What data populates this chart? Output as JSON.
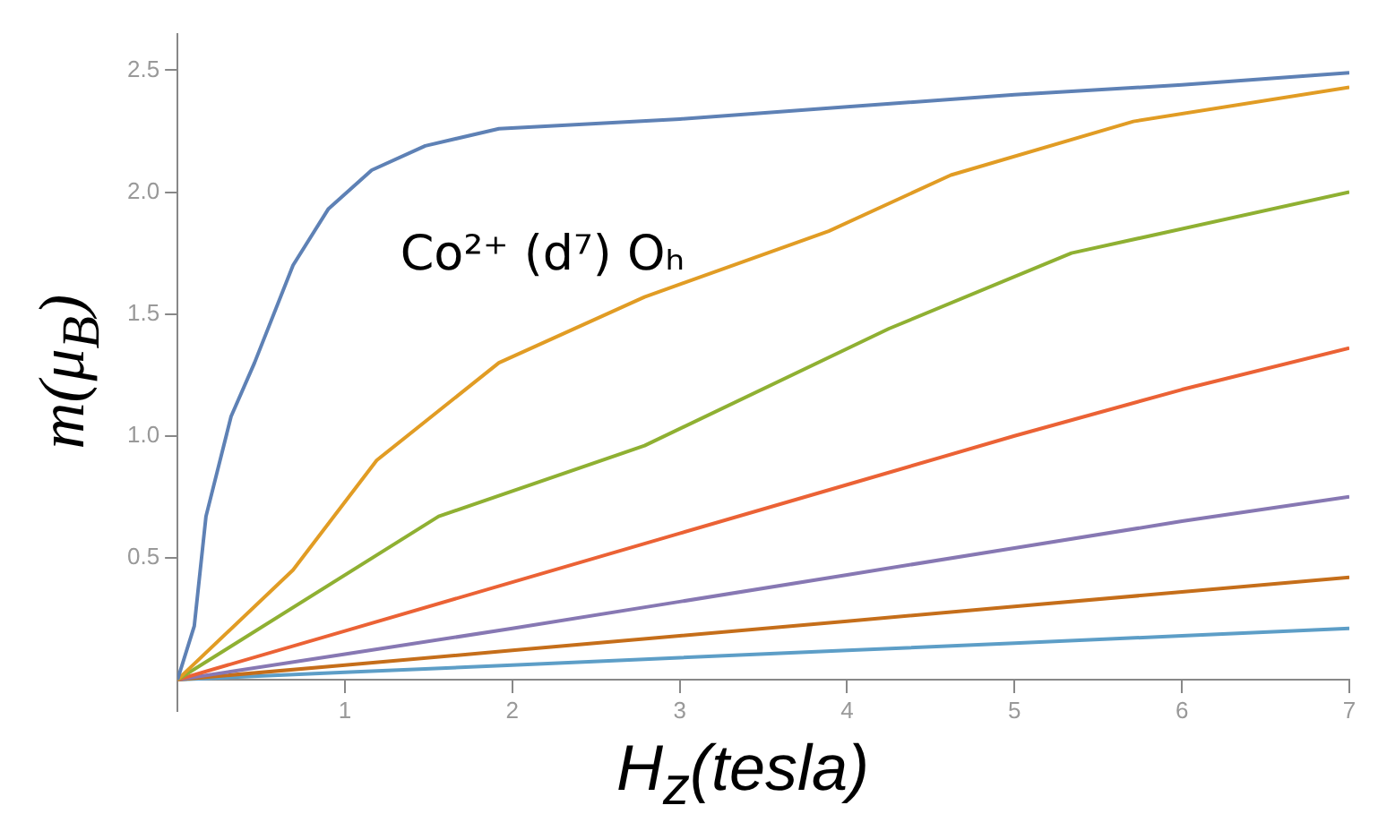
{
  "chart_data": {
    "type": "line",
    "xlabel": "H$_{z}$(tesla)",
    "ylabel": "m(μ$_{B}$)",
    "annotations": [
      "Co²⁺ (d⁷) Oₕ"
    ],
    "xlim": [
      0,
      7
    ],
    "ylim": [
      -0.13,
      2.65
    ],
    "xticks": [
      1,
      2,
      3,
      4,
      5,
      6,
      7
    ],
    "yticks": [
      0.5,
      {
        "value": 1,
        "label": "1.0"
      },
      1.5,
      {
        "value": 2,
        "label": "2.0"
      },
      2.5
    ],
    "marker": "none",
    "line_style": "solid",
    "legend": false,
    "series": [
      {
        "color": "#5e81b5",
        "x": [
          0,
          0.1,
          0.17,
          0.32,
          0.46,
          0.69,
          0.9,
          1.16,
          1.48,
          1.92,
          3,
          4,
          5,
          6,
          7
        ],
        "values": [
          0,
          0.22,
          0.67,
          1.08,
          1.3,
          1.7,
          1.93,
          2.09,
          2.19,
          2.26,
          2.3,
          2.35,
          2.4,
          2.44,
          2.49
        ]
      },
      {
        "color": "#e19c24",
        "x": [
          0,
          0.69,
          1.19,
          1.92,
          2.79,
          3.89,
          4.62,
          5.71,
          7
        ],
        "values": [
          0,
          0.45,
          0.9,
          1.3,
          1.57,
          1.84,
          2.07,
          2.29,
          2.43
        ]
      },
      {
        "color": "#8fb032",
        "x": [
          0,
          1.56,
          2.79,
          4.25,
          5.34,
          7
        ],
        "values": [
          0,
          0.67,
          0.96,
          1.44,
          1.75,
          2.0
        ]
      },
      {
        "color": "#eb6235",
        "x": [
          0,
          1,
          2,
          3,
          4,
          5,
          6,
          7
        ],
        "values": [
          0,
          0.2,
          0.4,
          0.6,
          0.8,
          1.0,
          1.19,
          1.36
        ]
      },
      {
        "color": "#8778b3",
        "x": [
          0,
          1,
          2,
          3,
          4,
          5,
          6,
          7
        ],
        "values": [
          0,
          0.105,
          0.21,
          0.32,
          0.43,
          0.54,
          0.65,
          0.75
        ]
      },
      {
        "color": "#c56e1a",
        "x": [
          0,
          1,
          2,
          3,
          4,
          5,
          6,
          7
        ],
        "values": [
          0,
          0.06,
          0.12,
          0.18,
          0.24,
          0.3,
          0.36,
          0.42
        ]
      },
      {
        "color": "#5d9ec7",
        "x": [
          0,
          1,
          2,
          3,
          4,
          5,
          6,
          7
        ],
        "values": [
          0,
          0.03,
          0.06,
          0.09,
          0.12,
          0.15,
          0.18,
          0.21
        ]
      }
    ]
  }
}
